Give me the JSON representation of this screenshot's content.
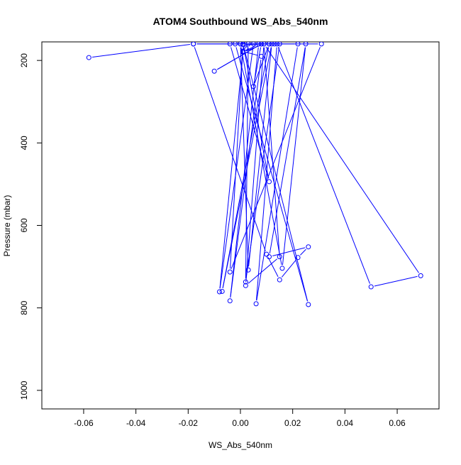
{
  "chart_data": {
    "type": "line",
    "title": "ATOM4 Southbound WS_Abs_540nm",
    "xlabel": "WS_Abs_540nm",
    "ylabel": "Pressure (mbar)",
    "xlim": [
      -0.076,
      0.076
    ],
    "ylim": [
      1045,
      155
    ],
    "y_reversed": true,
    "x_ticks": [
      -0.06,
      -0.04,
      -0.02,
      0.0,
      0.02,
      0.04,
      0.06
    ],
    "x_tick_labels": [
      "-0.06",
      "-0.04",
      "-0.02",
      "0.00",
      "0.02",
      "0.04",
      "0.06"
    ],
    "y_ticks": [
      200,
      400,
      600,
      800,
      1000
    ],
    "y_tick_labels": [
      "200",
      "400",
      "600",
      "800",
      "1000"
    ],
    "grid": false,
    "markers": "open-circle",
    "colors": {
      "series": "#0000ff",
      "axes": "#000000",
      "background": "#ffffff"
    },
    "series": [
      {
        "x": [
          -0.058,
          -0.018,
          0.01,
          0.015,
          0.022,
          0.026,
          0.011,
          0.025,
          0.016,
          0.0,
          0.003,
          0.012,
          -0.007,
          0.011,
          0.001,
          -0.004,
          0.031,
          -0.018,
          0.008,
          -0.01,
          0.008,
          0.005,
          0.011,
          0.022,
          0.006,
          0.014,
          0.05,
          0.069,
          0.009,
          0.015,
          0.002,
          0.009,
          0.001,
          -0.008,
          0.005,
          0.013,
          -0.004,
          0.011,
          0.001,
          0.026,
          -0.002,
          0.015,
          0.002,
          0.003,
          0.001,
          0.008,
          -0.004,
          0.007,
          0.001,
          0.002,
          0.0
        ],
        "y": [
          193,
          160,
          670,
          732,
          678,
          652,
          676,
          160,
          704,
          160,
          708,
          160,
          760,
          160,
          162,
          713,
          160,
          160,
          160,
          226,
          160,
          263,
          160,
          160,
          790,
          160,
          749,
          722,
          160,
          676,
          746,
          160,
          180,
          761,
          160,
          160,
          160,
          494,
          160,
          792,
          160,
          160,
          737,
          160,
          178,
          190,
          783,
          160,
          180,
          170,
          160
        ]
      }
    ]
  }
}
